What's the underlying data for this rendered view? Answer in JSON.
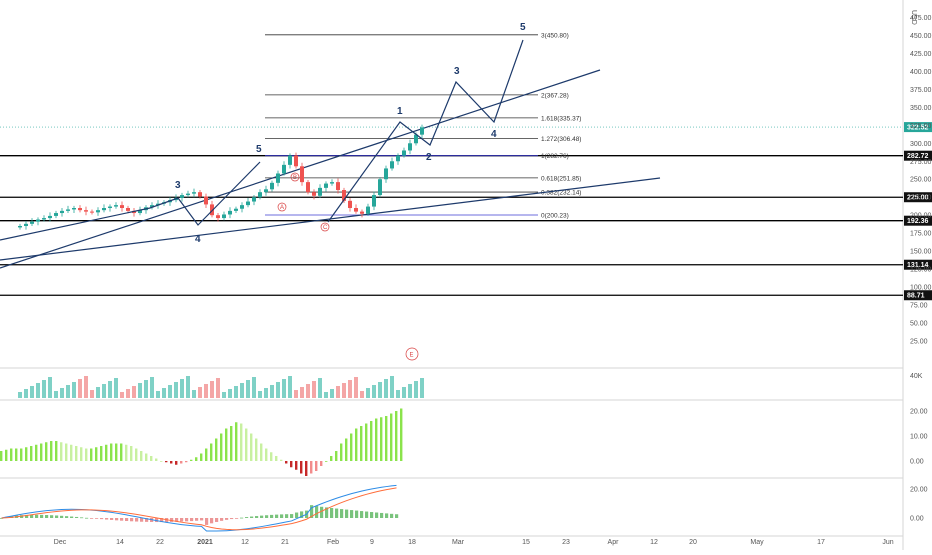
{
  "colors": {
    "up": "#26a69a",
    "down": "#ef5350",
    "wave": "#1d3a6b",
    "fib_line": "#333333",
    "fib_blue": "#3b3bd1",
    "level_line": "#000000",
    "current_price": "#26a69a",
    "hist_up_strong": "#8be34b",
    "hist_up_light": "#c8f0a0",
    "hist_down_strong": "#c62828",
    "hist_down_light": "#f28c8c",
    "macd_line": "#2e8ce6",
    "signal_line": "#ff6d3b"
  },
  "chart_data": [
    {
      "type": "candlestick",
      "title": "",
      "currency_label": "USD",
      "ylim": [
        0,
        500
      ],
      "y_ticks": [
        25,
        50,
        75,
        100,
        125,
        150,
        175,
        200,
        225,
        250,
        275,
        300,
        325,
        350,
        375,
        400,
        425,
        450,
        475
      ],
      "x_tick_labels": [
        "Dec",
        "14",
        "22",
        "2021",
        "12",
        "21",
        "Feb",
        "9",
        "18",
        "Mar",
        "15",
        "23",
        "Apr",
        "12",
        "20",
        "May",
        "17",
        "Jun"
      ],
      "current_price": "322.52",
      "horizontal_levels": [
        "282.72",
        "225.00",
        "192.36",
        "131.14",
        "88.71"
      ],
      "fib_levels": [
        {
          "label": "3(450.80)",
          "value": 450.8
        },
        {
          "label": "2(367.28)",
          "value": 367.28
        },
        {
          "label": "1.618(335.37)",
          "value": 335.37
        },
        {
          "label": "1.272(306.48)",
          "value": 306.48
        },
        {
          "label": "1(282.76)",
          "value": 282.76
        },
        {
          "label": "0.618(251.85)",
          "value": 251.85
        },
        {
          "label": "0.382(232.14)",
          "value": 232.14
        },
        {
          "label": "0(200.23)",
          "value": 200.23
        }
      ],
      "wave_labels": [
        "3",
        "4",
        "5",
        "1",
        "2",
        "3",
        "4",
        "5"
      ],
      "abc_labels": [
        "A",
        "B",
        "C"
      ],
      "event_marker": "E",
      "price_closes": [
        185,
        188,
        191,
        194,
        196,
        199,
        203,
        206,
        208,
        210,
        207,
        205,
        204,
        207,
        210,
        212,
        214,
        210,
        206,
        203,
        207,
        211,
        214,
        216,
        218,
        221,
        224,
        228,
        230,
        232,
        226,
        215,
        200,
        196,
        201,
        206,
        209,
        214,
        219,
        225,
        232,
        236,
        245,
        258,
        270,
        283,
        268,
        246,
        232,
        227,
        238,
        244,
        246,
        235,
        220,
        210,
        205,
        202,
        212,
        228,
        250,
        265,
        275,
        283,
        290,
        300,
        312,
        322
      ]
    },
    {
      "type": "bar",
      "title": "",
      "name": "volume",
      "y_ticks_label": [
        "40K"
      ]
    },
    {
      "type": "bar",
      "title": "",
      "name": "histogram",
      "y_ticks": [
        "20.00",
        "10.00",
        "0.00"
      ],
      "values": [
        4,
        4.5,
        5,
        5,
        5,
        5.5,
        6,
        6.5,
        7,
        7.5,
        8,
        8,
        7.5,
        7,
        6.5,
        6,
        5.5,
        5,
        5,
        5.5,
        6,
        6.5,
        7,
        7,
        7,
        6.5,
        6,
        5,
        4,
        3,
        2,
        1,
        0,
        -0.5,
        -1,
        -1.5,
        -1,
        -0.5,
        0.5,
        1.5,
        3,
        5,
        7,
        9,
        11,
        13,
        14,
        15.5,
        15,
        13,
        11,
        9,
        7,
        5,
        3.5,
        2,
        0.5,
        -1,
        -2.5,
        -3.5,
        -5,
        -6,
        -5,
        -4,
        -2,
        0,
        2,
        4,
        7,
        9,
        11,
        13,
        14,
        15,
        16,
        17,
        17.5,
        18,
        19,
        20,
        21
      ]
    },
    {
      "type": "line",
      "title": "",
      "name": "macd",
      "y_ticks": [
        "20.00",
        "0.00"
      ]
    }
  ]
}
